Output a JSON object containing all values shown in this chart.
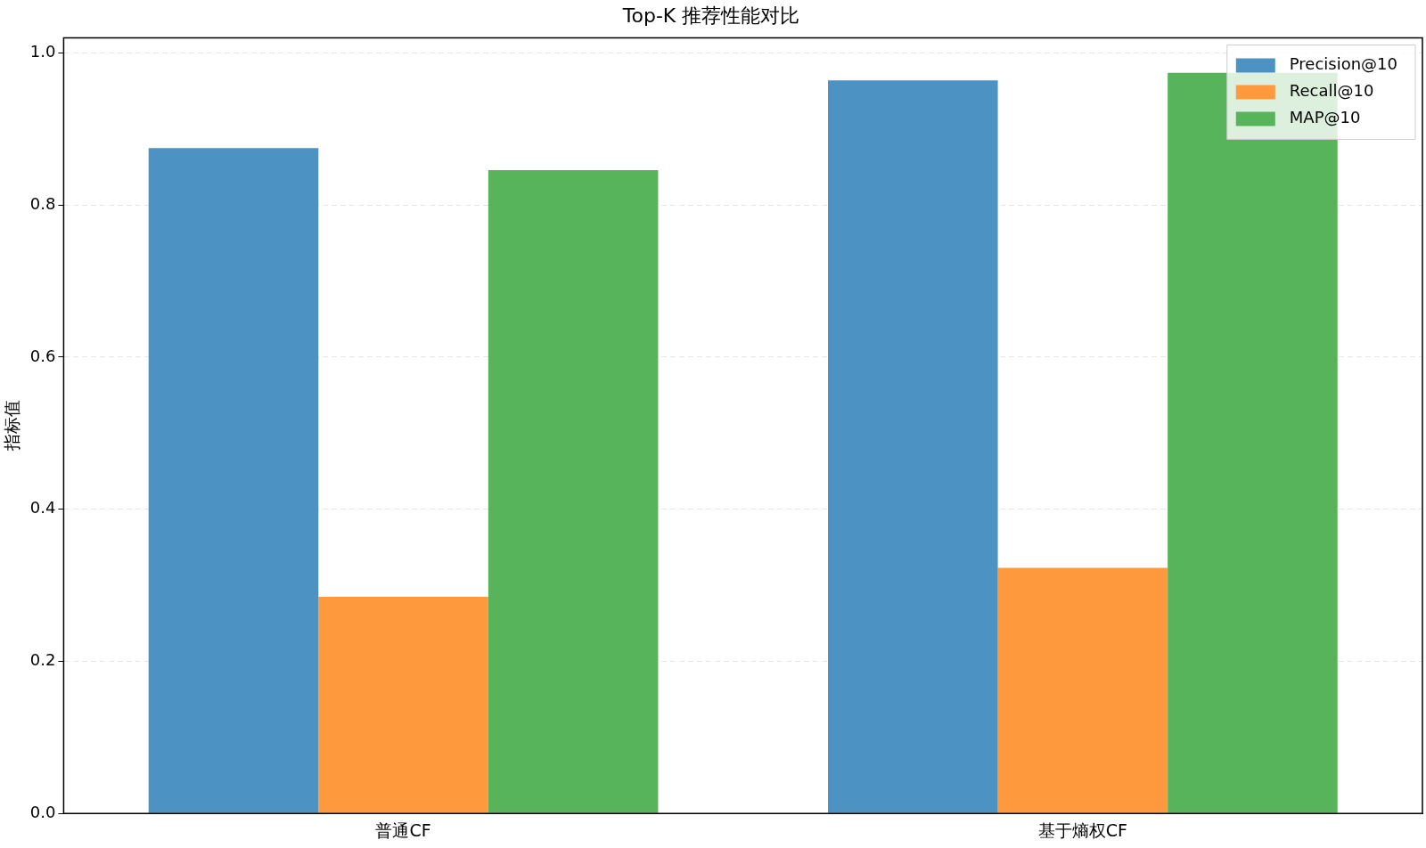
{
  "chart_data": {
    "type": "bar",
    "title": "Top-K 推荐性能对比",
    "ylabel": "指标值",
    "categories": [
      "普通CF",
      "基于熵权CF"
    ],
    "series": [
      {
        "name": "Precision@10",
        "color": "#4c93c3",
        "values": [
          0.875,
          0.964
        ]
      },
      {
        "name": "Recall@10",
        "color": "#fe9a3d",
        "values": [
          0.285,
          0.323
        ]
      },
      {
        "name": "MAP@10",
        "color": "#58b45a",
        "values": [
          0.846,
          0.974
        ]
      }
    ],
    "ylim": [
      0,
      1.02
    ],
    "yticks": [
      {
        "value": 0,
        "label": "0.0"
      },
      0.2,
      0.4,
      0.6,
      0.8,
      {
        "value": 1,
        "label": "1.0"
      }
    ],
    "grid": "y",
    "legend": "top right"
  }
}
